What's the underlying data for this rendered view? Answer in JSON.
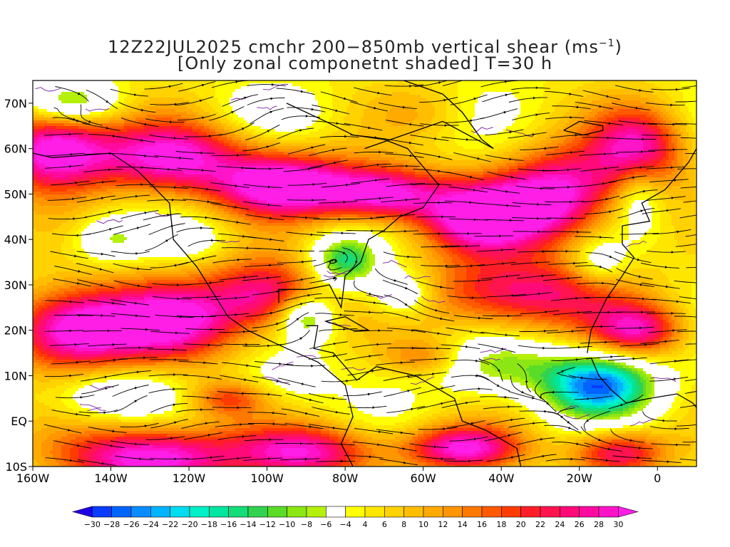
{
  "title": {
    "line1_pre": "12Z22JUL2025 cmchr 200−850mb vertical shear (ms",
    "line1_sup": "−1",
    "line1_post": ")",
    "line2": "[Only zonal componetnt shaded] T=30 h"
  },
  "map": {
    "lon_labels": [
      "160W",
      "140W",
      "120W",
      "100W",
      "80W",
      "60W",
      "40W",
      "20W",
      "0"
    ],
    "lat_labels": [
      "70N",
      "60N",
      "50N",
      "40N",
      "30N",
      "20N",
      "10N",
      "EQ",
      "10S"
    ],
    "lon_range": [
      -160,
      10
    ],
    "lat_range": [
      -10,
      75
    ],
    "colors": {
      "background": "#ffffff",
      "frame": "#000000",
      "streamlines": "#000000",
      "contours": "#7a1fa0",
      "coastlines": "#000000"
    }
  },
  "colorbar": {
    "labels": [
      "−30",
      "−28",
      "−26",
      "−24",
      "−22",
      "−20",
      "−18",
      "−16",
      "−14",
      "−12",
      "−10",
      "−8",
      "−6",
      "−4",
      "4",
      "6",
      "8",
      "10",
      "12",
      "14",
      "16",
      "18",
      "20",
      "22",
      "24",
      "26",
      "28",
      "30"
    ],
    "colors": [
      "#1e00e6",
      "#0a3cff",
      "#0064ff",
      "#0a8cff",
      "#00b4ff",
      "#00dcf0",
      "#00f0c8",
      "#00e6a0",
      "#14dc78",
      "#32d250",
      "#5adc28",
      "#8ce614",
      "#b4f00a",
      "#ffffff",
      "#ffff00",
      "#ffe600",
      "#ffd200",
      "#ffbe00",
      "#ffaa00",
      "#ff9600",
      "#ff7800",
      "#ff5a00",
      "#ff3c00",
      "#ff1e28",
      "#ff1450",
      "#ff0a78",
      "#ff0aa0",
      "#ff14c8",
      "#ff1ee6"
    ]
  }
}
